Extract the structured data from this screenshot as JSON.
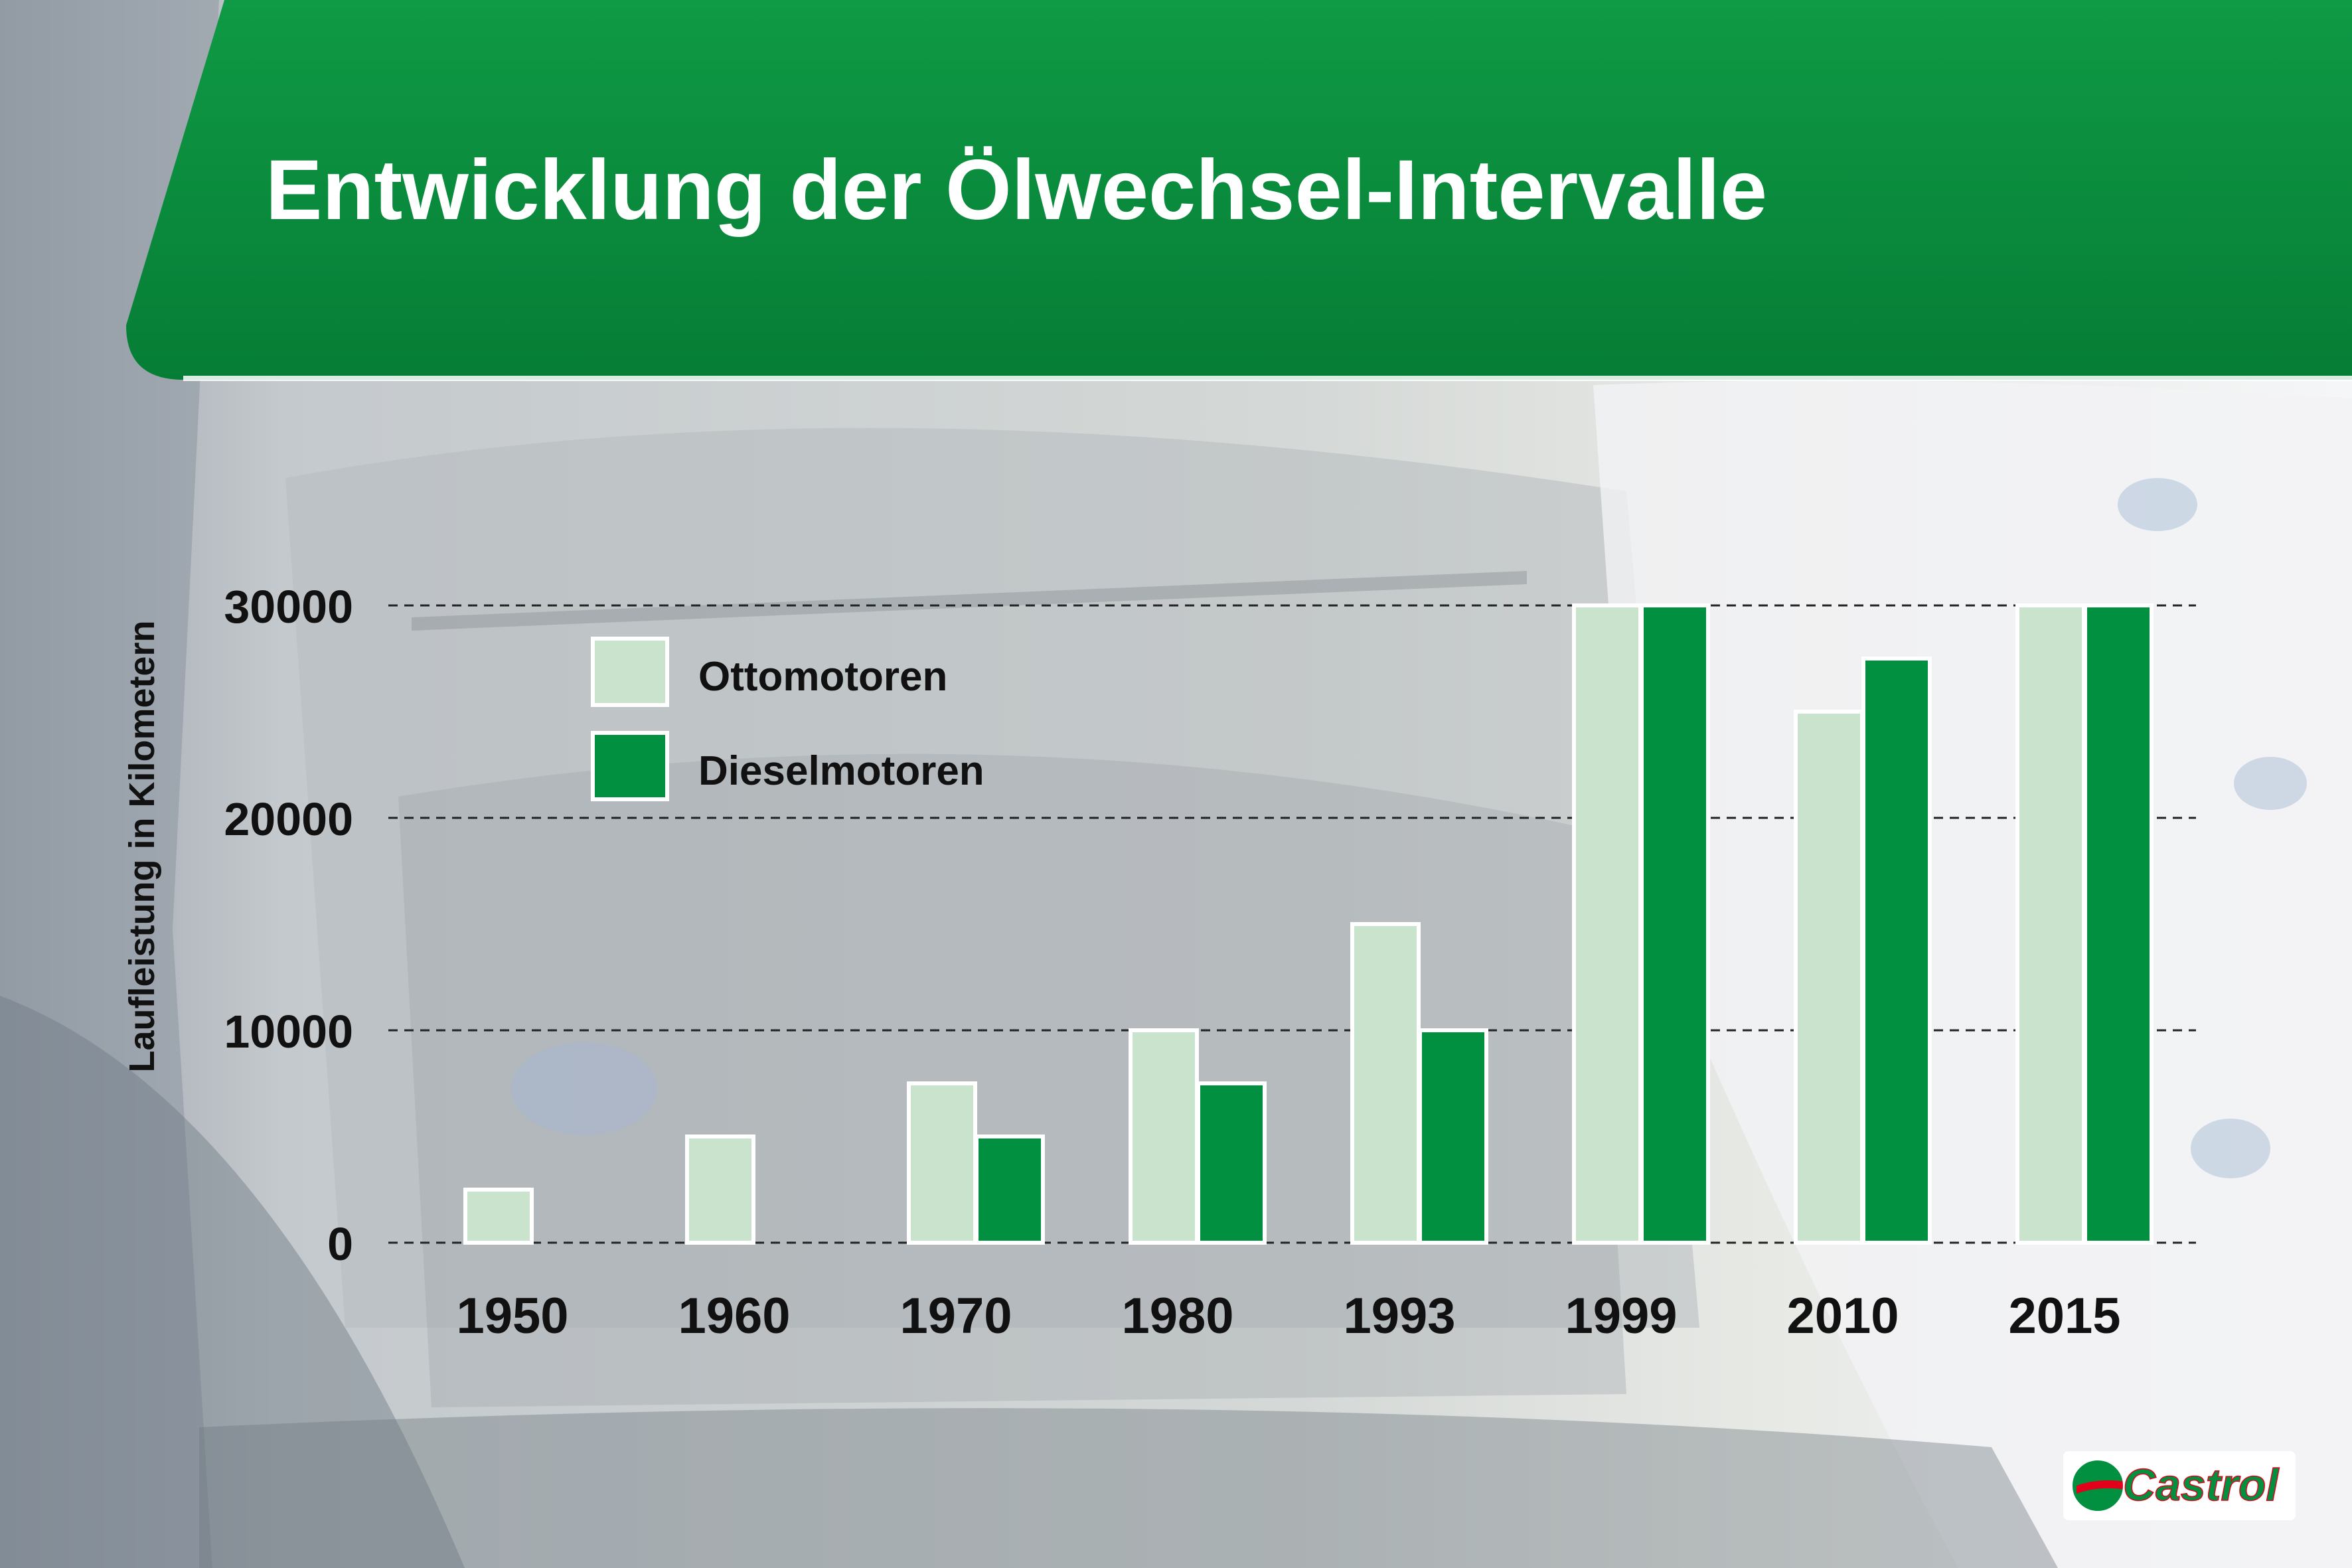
{
  "chart_data": {
    "type": "bar",
    "title": "Entwicklung der Ölwechsel-Intervalle",
    "ylabel": "Laufleistung in Kilometern",
    "xlabel": "",
    "categories": [
      "1950",
      "1960",
      "1970",
      "1980",
      "1993",
      "1999",
      "2010",
      "2015"
    ],
    "series": [
      {
        "name": "Ottomotoren",
        "values": [
          2500,
          5000,
          7500,
          10000,
          15000,
          30000,
          25000,
          30000
        ]
      },
      {
        "name": "Dieselmotoren",
        "values": [
          null,
          null,
          5000,
          7500,
          10000,
          30000,
          27500,
          30000
        ]
      }
    ],
    "ylim": [
      0,
      30000
    ],
    "yticks": [
      "0",
      "10000",
      "20000",
      "30000"
    ],
    "grid": true,
    "grid_style": "dashed",
    "legend_position": "top-left",
    "colors": {
      "Ottomotoren": "#c9e3cd",
      "Dieselmotoren": "#009040",
      "banner": "#0a8a3c"
    }
  },
  "brand": {
    "logo_text": "Castrol"
  }
}
